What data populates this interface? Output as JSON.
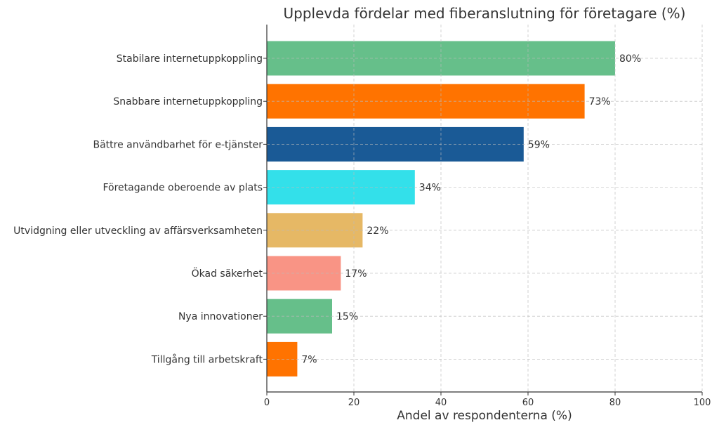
{
  "chart_data": {
    "type": "bar",
    "orientation": "horizontal",
    "title": "Upplevda fördelar med fiberanslutning för företagare (%)",
    "xlabel": "Andel av respondenterna (%)",
    "ylabel": "",
    "xlim": [
      0,
      100
    ],
    "xticks": [
      "0",
      "20",
      "40",
      "60",
      "80",
      "100"
    ],
    "grid": true,
    "categories": [
      "Stabilare internetuppkoppling",
      "Snabbare internetuppkoppling",
      "Bättre användbarhet för e-tjänster",
      "Företagande oberoende av plats",
      "Utvidgning eller utveckling av affärsverksamheten",
      "Ökad säkerhet",
      "Nya innovationer",
      "Tillgång till arbetskraft"
    ],
    "values": [
      80,
      73,
      59,
      34,
      22,
      17,
      15,
      7
    ],
    "data_labels": [
      "80%",
      "73%",
      "59%",
      "34%",
      "22%",
      "17%",
      "15%",
      "7%"
    ],
    "colors": [
      "#66bf8a",
      "#ff7300",
      "#1a5a96",
      "#33e0ea",
      "#e6b865",
      "#f99485",
      "#66bf8a",
      "#ff7300"
    ]
  }
}
